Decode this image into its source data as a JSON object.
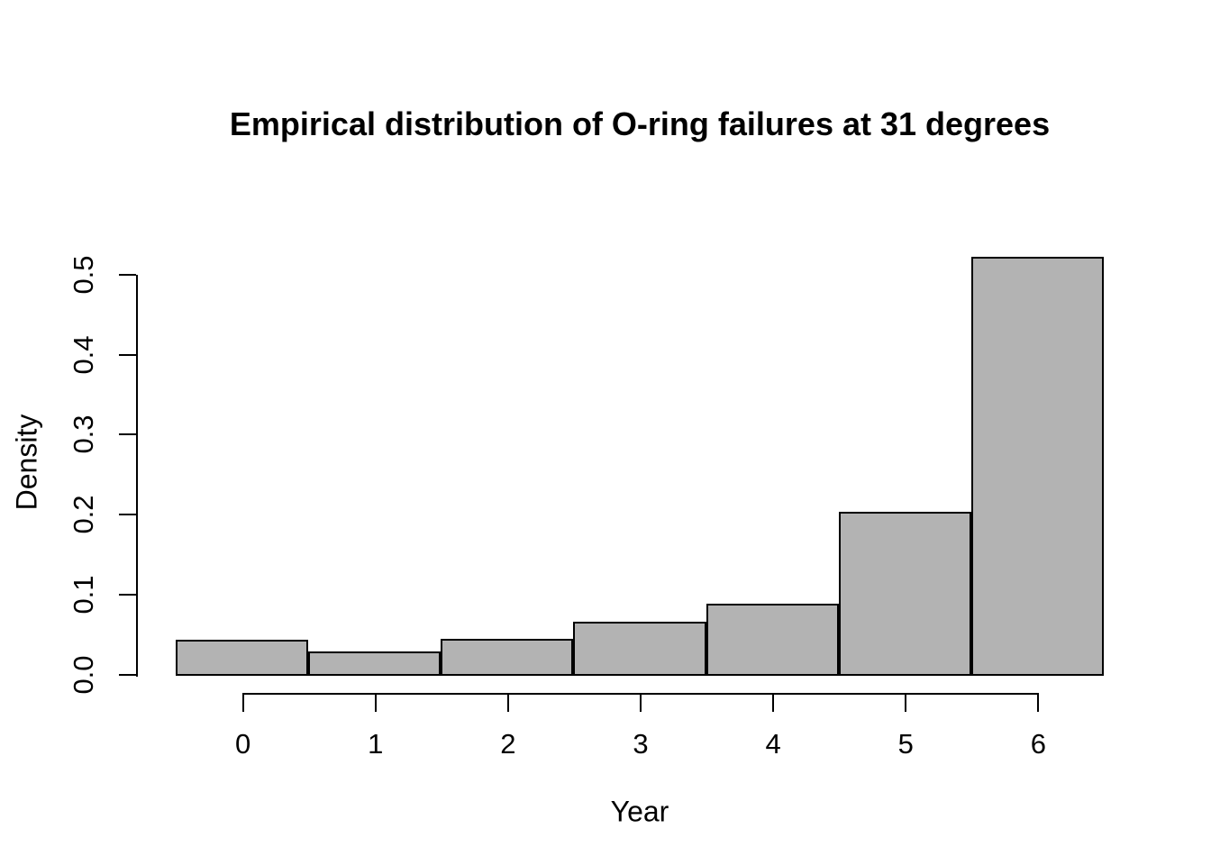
{
  "chart_data": {
    "type": "bar",
    "subtype": "histogram",
    "title": "Empirical distribution of O-ring failures at 31 degrees",
    "xlabel": "Year",
    "ylabel": "Density",
    "categories": [
      0,
      1,
      2,
      3,
      4,
      5,
      6
    ],
    "values": [
      0.043,
      0.029,
      0.045,
      0.066,
      0.089,
      0.204,
      0.522
    ],
    "bar_width": 1,
    "xlim": [
      -0.5,
      6.5
    ],
    "ylim": [
      0,
      0.5
    ],
    "x_ticks": [
      "0",
      "1",
      "2",
      "3",
      "4",
      "5",
      "6"
    ],
    "x_tick_values": [
      0,
      1,
      2,
      3,
      4,
      5,
      6
    ],
    "y_ticks": [
      "0.0",
      "0.1",
      "0.2",
      "0.3",
      "0.4",
      "0.5"
    ],
    "y_tick_values": [
      0.0,
      0.1,
      0.2,
      0.3,
      0.4,
      0.5
    ],
    "grid": false,
    "legend": false,
    "colors": {
      "bar_fill": "#b3b3b3",
      "bar_border": "#000000",
      "axis": "#000000",
      "text": "#000000",
      "background": "#ffffff"
    }
  }
}
